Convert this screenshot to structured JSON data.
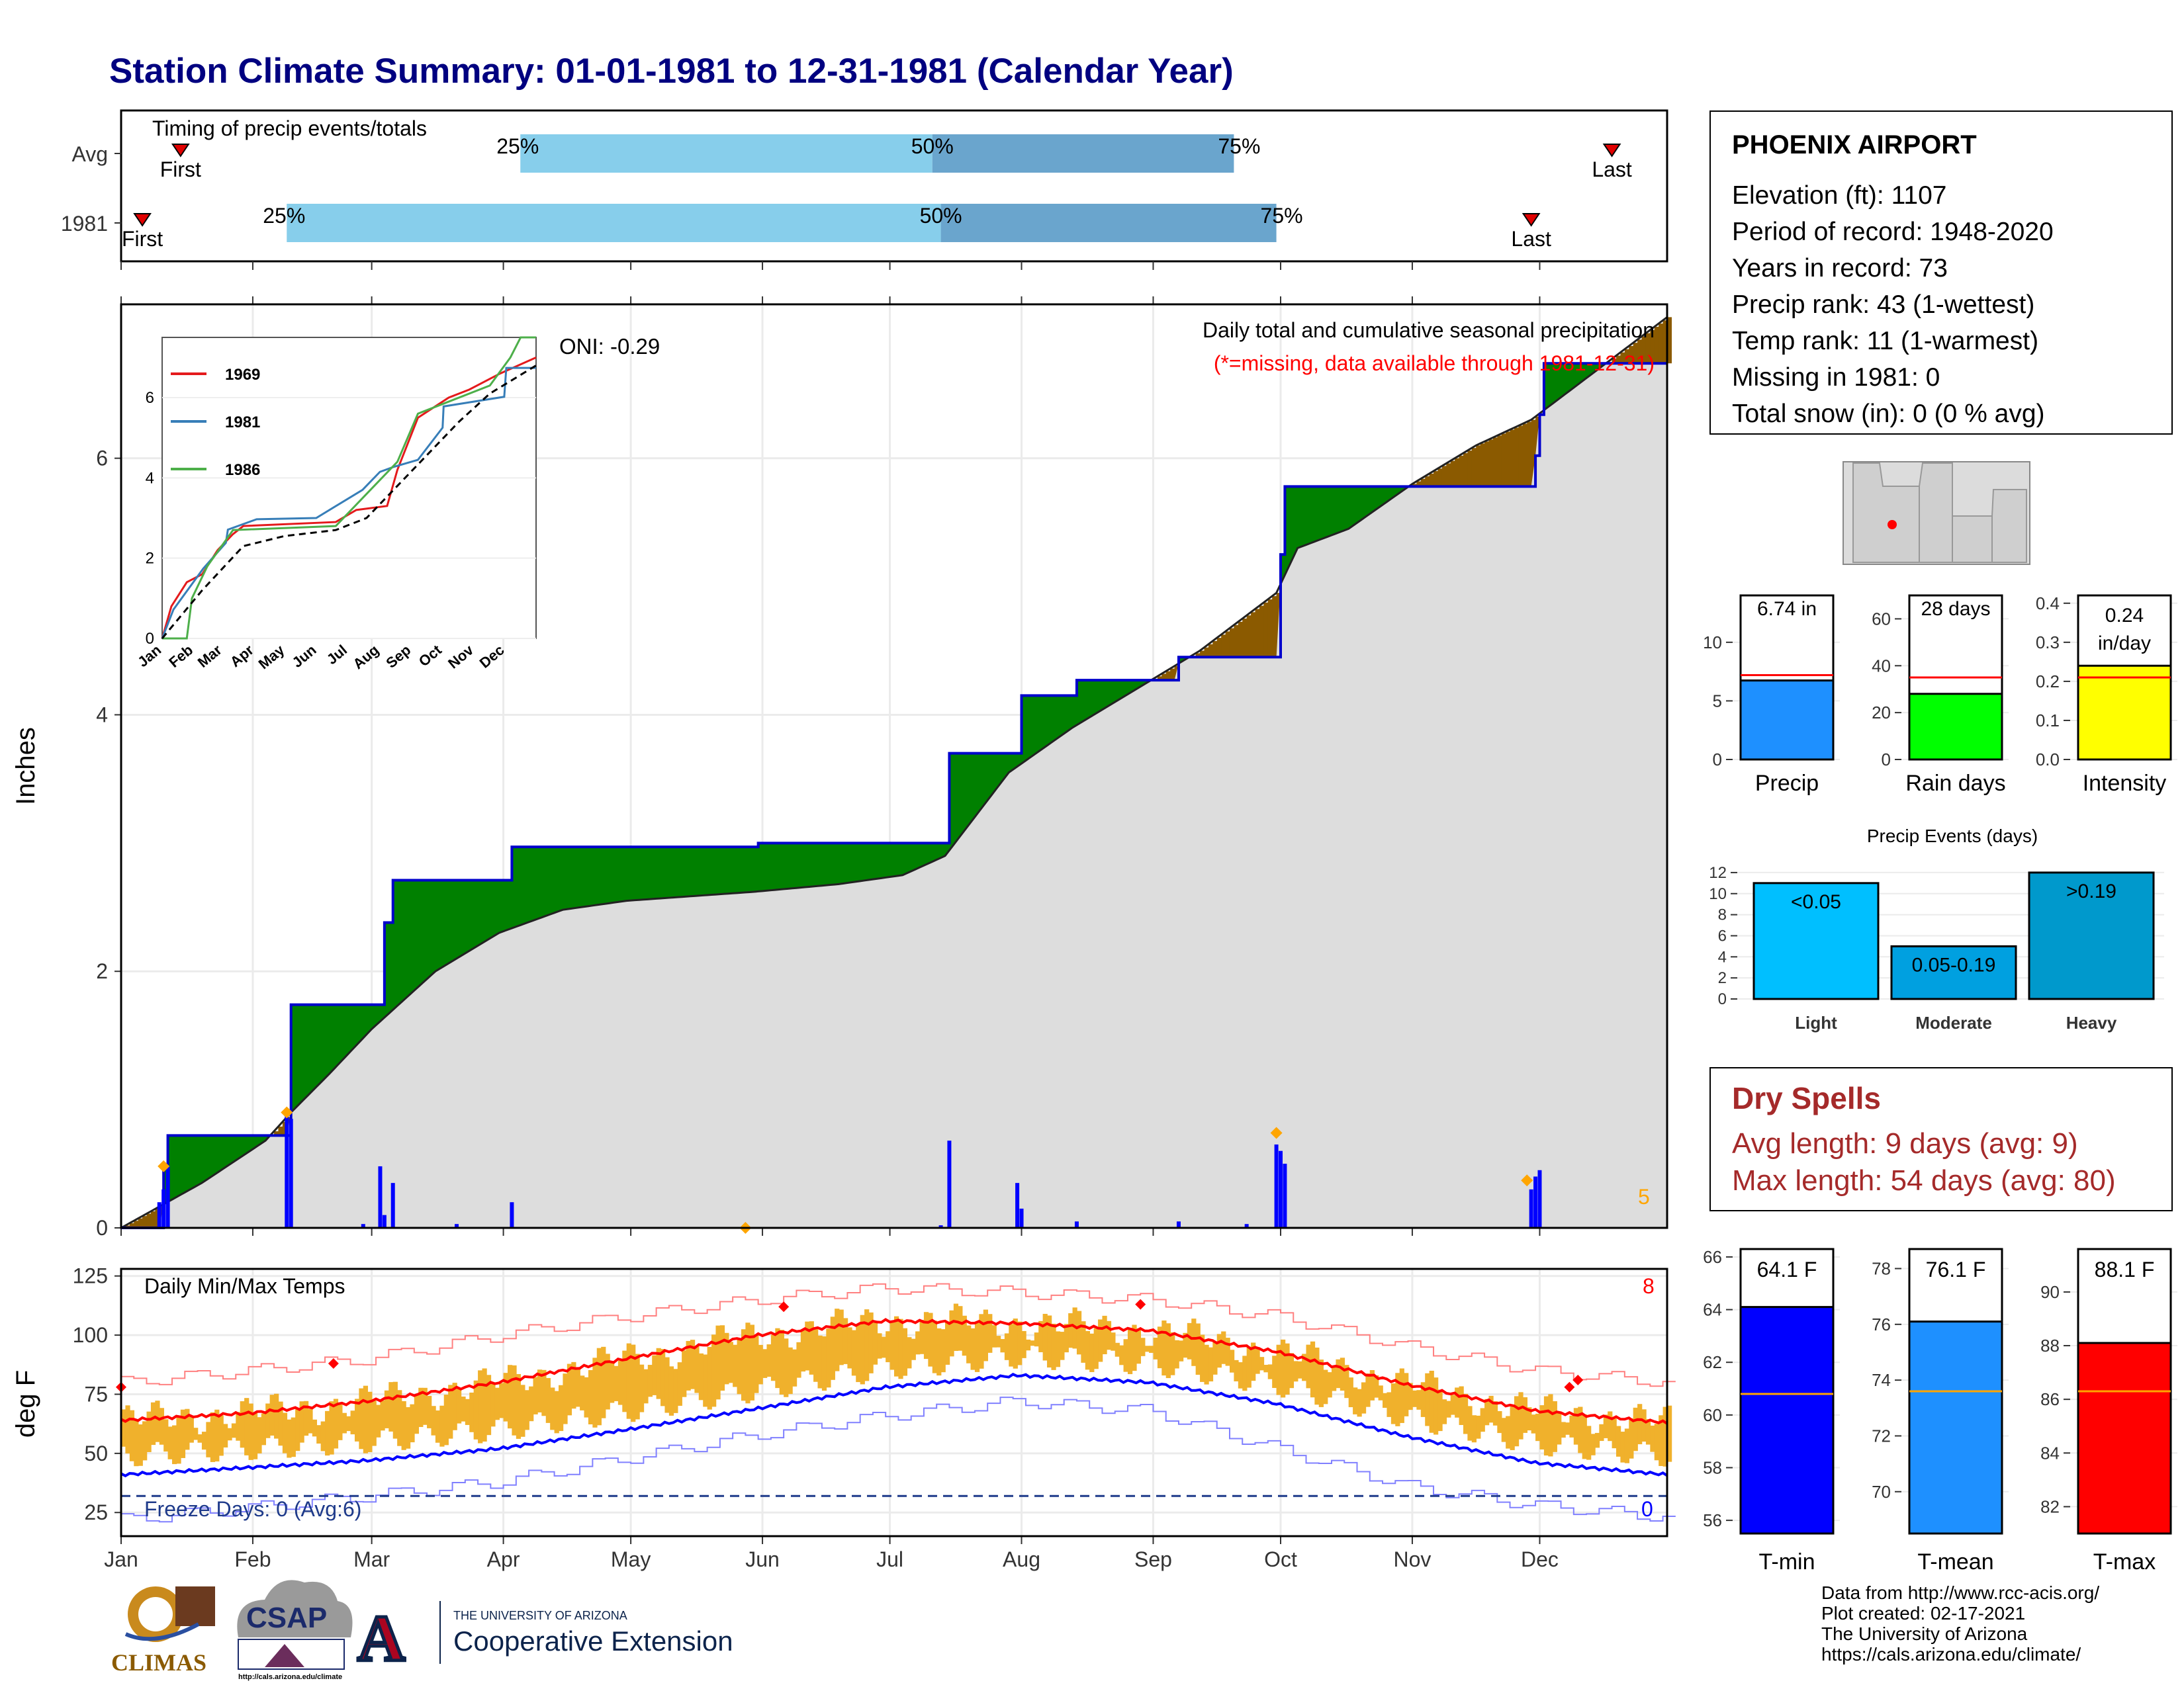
{
  "title": "Station Climate Summary: 01-01-1981 to 12-31-1981 (Calendar Year)",
  "colors": {
    "title": "#000080",
    "light_blue": "#87ceeb",
    "mid_blue": "#6aa5cd",
    "surplus": "#008000",
    "deficit": "#8b5a00",
    "cum_fill": "#dddddd",
    "cum_line": "#0000cc",
    "bars": "#0000ff",
    "temp_bars": "#f0b12c",
    "max_line": "#ff0000",
    "min_line": "#0000ff",
    "orange": "#ffa500",
    "dry_red": "#a52a2a",
    "grid": "#ebebeb"
  },
  "months": [
    "Jan",
    "Feb",
    "Mar",
    "Apr",
    "May",
    "Jun",
    "Jul",
    "Aug",
    "Sep",
    "Oct",
    "Nov",
    "Dec"
  ],
  "timing": {
    "label": "Timing of precip events/totals",
    "rows": [
      {
        "name": "Avg",
        "first_label": "First",
        "last_label": "Last",
        "first_doy": 15,
        "last_doy": 352,
        "p25_label": "25%",
        "p50_label": "50%",
        "p75_label": "75%",
        "p25_doy": 95,
        "p50_doy": 192,
        "p75_doy": 263
      },
      {
        "name": "1981",
        "first_label": "First",
        "last_label": "Last",
        "first_doy": 6,
        "last_doy": 333,
        "p25_label": "25%",
        "p50_label": "50%",
        "p75_label": "75%",
        "p25_doy": 40,
        "p50_doy": 194,
        "p75_doy": 273
      }
    ]
  },
  "precip": {
    "ylabel": "Inches",
    "yticks": [
      "0",
      "2",
      "4",
      "6"
    ],
    "header": "Daily total and cumulative seasonal precipitation",
    "missing_note": "(*=missing, data available through 1981-12-31)",
    "oni": "ONI: -0.29",
    "corner_count": "5"
  },
  "chart_data": [
    {
      "type": "area",
      "name": "cumulative precipitation 1981 vs average",
      "xunit": "day of year",
      "ylim": [
        0,
        7.2
      ],
      "observed_steps": [
        [
          1,
          0
        ],
        [
          11,
          0.48
        ],
        [
          12,
          0.72
        ],
        [
          40,
          0.72
        ],
        [
          41,
          1.74
        ],
        [
          62,
          1.74
        ],
        [
          63,
          2.38
        ],
        [
          65,
          2.71
        ],
        [
          92,
          2.71
        ],
        [
          93,
          2.97
        ],
        [
          150,
          2.97
        ],
        [
          151,
          3.0
        ],
        [
          195,
          3.0
        ],
        [
          196,
          3.7
        ],
        [
          212,
          3.7
        ],
        [
          213,
          4.15
        ],
        [
          225,
          4.15
        ],
        [
          226,
          4.27
        ],
        [
          249,
          4.27
        ],
        [
          250,
          4.45
        ],
        [
          273,
          4.45
        ],
        [
          274,
          5.25
        ],
        [
          275,
          5.78
        ],
        [
          305,
          5.78
        ],
        [
          333,
          5.78
        ],
        [
          334,
          6.02
        ],
        [
          335,
          6.34
        ],
        [
          336,
          6.74
        ],
        [
          365,
          6.74
        ]
      ],
      "normal": [
        [
          1,
          0
        ],
        [
          20,
          0.35
        ],
        [
          35,
          0.68
        ],
        [
          41,
          0.9
        ],
        [
          50,
          1.2
        ],
        [
          60,
          1.55
        ],
        [
          75,
          2.0
        ],
        [
          90,
          2.3
        ],
        [
          105,
          2.48
        ],
        [
          120,
          2.55
        ],
        [
          150,
          2.62
        ],
        [
          170,
          2.68
        ],
        [
          185,
          2.75
        ],
        [
          195,
          2.9
        ],
        [
          210,
          3.55
        ],
        [
          225,
          3.9
        ],
        [
          240,
          4.2
        ],
        [
          255,
          4.5
        ],
        [
          265,
          4.75
        ],
        [
          273,
          4.95
        ],
        [
          278,
          5.3
        ],
        [
          290,
          5.45
        ],
        [
          305,
          5.8
        ],
        [
          320,
          6.1
        ],
        [
          333,
          6.3
        ],
        [
          345,
          6.6
        ],
        [
          355,
          6.85
        ],
        [
          365,
          7.1
        ]
      ],
      "daily_bars": [
        [
          10,
          0.2
        ],
        [
          11,
          0.3
        ],
        [
          12,
          0.48
        ],
        [
          40,
          0.9
        ],
        [
          41,
          0.85
        ],
        [
          58,
          0.03
        ],
        [
          62,
          0.48
        ],
        [
          63,
          0.1
        ],
        [
          65,
          0.35
        ],
        [
          80,
          0.03
        ],
        [
          93,
          0.2
        ],
        [
          194,
          0.02
        ],
        [
          196,
          0.68
        ],
        [
          212,
          0.35
        ],
        [
          213,
          0.15
        ],
        [
          226,
          0.05
        ],
        [
          250,
          0.05
        ],
        [
          266,
          0.03
        ],
        [
          273,
          0.65
        ],
        [
          274,
          0.6
        ],
        [
          275,
          0.5
        ],
        [
          333,
          0.3
        ],
        [
          334,
          0.4
        ],
        [
          335,
          0.45
        ]
      ],
      "markers": [
        [
          11,
          0.48
        ],
        [
          40,
          0.9
        ],
        [
          148,
          0.0
        ],
        [
          273,
          0.74
        ],
        [
          332,
          0.37
        ]
      ]
    },
    {
      "type": "line",
      "name": "inset cumulative precipitation comparison",
      "yticks": [
        "0",
        "2",
        "4",
        "6"
      ],
      "series": [
        {
          "name": "1969",
          "color": "#e41a1c",
          "points": [
            [
              1,
              0
            ],
            [
              10,
              0.8
            ],
            [
              25,
              1.4
            ],
            [
              40,
              1.6
            ],
            [
              55,
              2.2
            ],
            [
              70,
              2.6
            ],
            [
              80,
              2.8
            ],
            [
              170,
              2.9
            ],
            [
              190,
              3.2
            ],
            [
              220,
              3.3
            ],
            [
              230,
              4.2
            ],
            [
              250,
              5.5
            ],
            [
              280,
              6.0
            ],
            [
              300,
              6.2
            ],
            [
              330,
              6.6
            ],
            [
              365,
              7.0
            ]
          ]
        },
        {
          "name": "1981",
          "color": "#377eb8",
          "points": [
            [
              1,
              0
            ],
            [
              12,
              0.72
            ],
            [
              41,
              1.74
            ],
            [
              63,
              2.38
            ],
            [
              65,
              2.71
            ],
            [
              93,
              2.97
            ],
            [
              151,
              3.0
            ],
            [
              196,
              3.7
            ],
            [
              213,
              4.15
            ],
            [
              226,
              4.27
            ],
            [
              250,
              4.45
            ],
            [
              274,
              5.25
            ],
            [
              275,
              5.78
            ],
            [
              334,
              6.02
            ],
            [
              336,
              6.74
            ],
            [
              365,
              6.74
            ]
          ]
        },
        {
          "name": "1986",
          "color": "#4daf4a",
          "points": [
            [
              1,
              0
            ],
            [
              25,
              0
            ],
            [
              30,
              1.0
            ],
            [
              45,
              1.8
            ],
            [
              70,
              2.7
            ],
            [
              170,
              2.8
            ],
            [
              200,
              3.6
            ],
            [
              230,
              4.4
            ],
            [
              250,
              5.6
            ],
            [
              280,
              5.9
            ],
            [
              320,
              6.3
            ],
            [
              340,
              7.0
            ],
            [
              350,
              7.5
            ],
            [
              365,
              7.5
            ]
          ]
        },
        {
          "name": "",
          "color": "#000000",
          "points": [
            [
              1,
              0
            ],
            [
              40,
              1.2
            ],
            [
              80,
              2.3
            ],
            [
              120,
              2.55
            ],
            [
              170,
              2.7
            ],
            [
              200,
              3.0
            ],
            [
              230,
              3.8
            ],
            [
              260,
              4.6
            ],
            [
              290,
              5.4
            ],
            [
              320,
              6.1
            ],
            [
              365,
              6.8
            ]
          ]
        }
      ]
    },
    {
      "type": "line",
      "name": "daily temperatures",
      "ylabel": "deg F",
      "yticks": [
        "25",
        "50",
        "75",
        "100",
        "125"
      ],
      "ylim": [
        15,
        128
      ],
      "normal_max": [
        [
          1,
          64
        ],
        [
          31,
          67
        ],
        [
          59,
          72
        ],
        [
          90,
          80
        ],
        [
          120,
          90
        ],
        [
          151,
          100
        ],
        [
          181,
          106
        ],
        [
          212,
          105
        ],
        [
          243,
          102
        ],
        [
          273,
          93
        ],
        [
          304,
          79
        ],
        [
          334,
          68
        ],
        [
          365,
          63
        ]
      ],
      "normal_min": [
        [
          1,
          41
        ],
        [
          31,
          44
        ],
        [
          59,
          47
        ],
        [
          90,
          52
        ],
        [
          120,
          60
        ],
        [
          151,
          69
        ],
        [
          181,
          78
        ],
        [
          212,
          83
        ],
        [
          243,
          80
        ],
        [
          273,
          71
        ],
        [
          304,
          57
        ],
        [
          334,
          46
        ],
        [
          365,
          41
        ]
      ],
      "record_max_env": [
        [
          1,
          80
        ],
        [
          31,
          85
        ],
        [
          59,
          90
        ],
        [
          90,
          100
        ],
        [
          120,
          108
        ],
        [
          151,
          115
        ],
        [
          181,
          120
        ],
        [
          212,
          118
        ],
        [
          243,
          115
        ],
        [
          273,
          108
        ],
        [
          304,
          95
        ],
        [
          334,
          85
        ],
        [
          365,
          80
        ]
      ],
      "record_min_env": [
        [
          1,
          22
        ],
        [
          31,
          27
        ],
        [
          59,
          32
        ],
        [
          90,
          38
        ],
        [
          120,
          48
        ],
        [
          151,
          58
        ],
        [
          181,
          66
        ],
        [
          212,
          72
        ],
        [
          243,
          68
        ],
        [
          273,
          52
        ],
        [
          304,
          36
        ],
        [
          334,
          28
        ],
        [
          365,
          23
        ]
      ],
      "freeze_line": 32,
      "record_markers": [
        [
          1,
          78
        ],
        [
          51,
          88
        ],
        [
          157,
          112
        ],
        [
          241,
          113
        ],
        [
          342,
          78
        ],
        [
          344,
          81
        ]
      ]
    },
    {
      "type": "bar",
      "name": "precipitation totals vs average",
      "categories": [
        "Precip",
        "Rain days",
        "Intensity"
      ],
      "values": [
        6.74,
        28,
        0.24
      ],
      "averages": [
        7.2,
        35,
        0.21
      ],
      "labels": [
        "6.74 in",
        "28 days",
        "0.24 in/day"
      ],
      "yticks": [
        [
          "0",
          "5",
          "10"
        ],
        [
          "0",
          "20",
          "40",
          "60"
        ],
        [
          "0.0",
          "0.1",
          "0.2",
          "0.3",
          "0.4"
        ]
      ]
    },
    {
      "type": "bar",
      "name": "precip events",
      "title": "Precip Events (days)",
      "categories": [
        "Light",
        "Moderate",
        "Heavy"
      ],
      "values": [
        11,
        5,
        12
      ],
      "labels": [
        "<0.05",
        "0.05-0.19",
        ">0.19"
      ],
      "yticks": [
        "0",
        "2",
        "4",
        "6",
        "8",
        "10",
        "12"
      ]
    },
    {
      "type": "bar",
      "name": "temperature means vs average",
      "categories": [
        "T-min",
        "T-mean",
        "T-max"
      ],
      "values": [
        64.1,
        76.1,
        88.1
      ],
      "averages": [
        60.8,
        73.6,
        86.3
      ],
      "labels": [
        "64.1 F",
        "76.1 F",
        "88.1 F"
      ],
      "yticks": [
        [
          "56",
          "58",
          "60",
          "62",
          "64",
          "66"
        ],
        [
          "70",
          "72",
          "74",
          "76",
          "78"
        ],
        [
          "82",
          "84",
          "86",
          "88",
          "90"
        ]
      ]
    }
  ],
  "temps": {
    "label": "Daily Min/Max Temps",
    "freeze_label": "Freeze Days: 0 (Avg:6)",
    "count_top": "8",
    "count_bottom": "0"
  },
  "station": {
    "name": "PHOENIX AIRPORT",
    "rows": [
      "Elevation (ft): 1107",
      "Period of record: 1948-2020",
      "Years in record: 73",
      "Precip rank: 43 (1-wettest)",
      "Temp rank: 11 (1-warmest)",
      "Missing in 1981: 0",
      "Total snow (in): 0 (0 % avg)"
    ]
  },
  "dry_spells": {
    "title": "Dry Spells",
    "avg": "Avg length: 9 days (avg: 9)",
    "max": "Max length: 54 days (avg: 80)"
  },
  "credits": [
    "Data from http://www.rcc-acis.org/",
    "Plot created: 02-17-2021",
    "The University of Arizona",
    "https://cals.arizona.edu/climate/"
  ],
  "logos": {
    "climas": "CLIMAS",
    "csap": "CSAP",
    "csap_url": "http://cals.arizona.edu/climate",
    "ua_line1": "THE UNIVERSITY OF ARIZONA",
    "ua_line2": "Cooperative Extension",
    "ua_letter": "A"
  },
  "icons": [
    "location-dot-icon",
    "first-event-triangle-icon",
    "last-event-triangle-icon"
  ]
}
